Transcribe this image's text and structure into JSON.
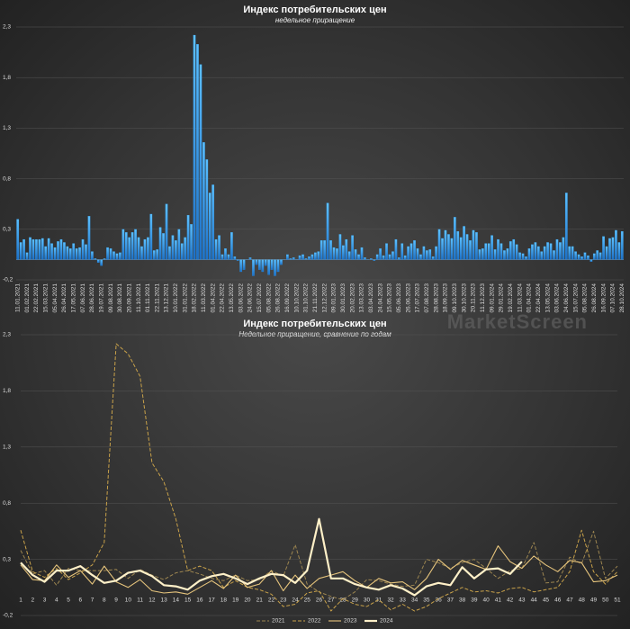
{
  "chart_data": [
    {
      "type": "bar",
      "title": "Индекс потребительских цен",
      "subtitle": "недельное приращение",
      "watermark": "MarketScreen",
      "color": "#2b9cf0",
      "categories": [
        "11.01.2021",
        null,
        null,
        "01.02.2021",
        null,
        null,
        "22.02.2021",
        null,
        null,
        "15.03.2021",
        null,
        null,
        "05.04.2021",
        null,
        null,
        "26.04.2021",
        null,
        null,
        "17.05.2021",
        null,
        null,
        "07.06.2021",
        null,
        null,
        "28.06.2021",
        null,
        null,
        "19.07.2021",
        null,
        null,
        "09.08.2021",
        null,
        null,
        "30.08.2021",
        null,
        null,
        "20.09.2021",
        null,
        null,
        "11.10.2021",
        null,
        null,
        "01.11.2021",
        null,
        null,
        "22.11.2021",
        null,
        null,
        "13.12.2021",
        null,
        null,
        "10.01.2022",
        null,
        null,
        "31.01.2022",
        null,
        null,
        "18.02.2022",
        null,
        null,
        "11.03.2022",
        null,
        null,
        "01.04.2022",
        null,
        null,
        "22.04.2022",
        null,
        null,
        "13.05.2022",
        null,
        null,
        "03.06.2022",
        null,
        null,
        "24.06.2022",
        null,
        null,
        "15.07.2022",
        null,
        null,
        "05.08.2022",
        null,
        null,
        "26.08.2022",
        null,
        null,
        "16.09.2022",
        null,
        null,
        "10.10.2022",
        null,
        null,
        "31.10.2022",
        null,
        null,
        "21.11.2022",
        null,
        null,
        "12.12.2022",
        null,
        null,
        "09.01.2023",
        null,
        null,
        "30.01.2023",
        null,
        null,
        "20.02.2023",
        null,
        null,
        "13.03.2023",
        null,
        null,
        "03.04.2023",
        null,
        null,
        "24.04.2023",
        null,
        null,
        "15.05.2023",
        null,
        null,
        "05.06.2023",
        null,
        null,
        "26.06.2023",
        null,
        null,
        "17.07.2023",
        null,
        null,
        "07.08.2023",
        null,
        null,
        "28.08.2023",
        null,
        null,
        "18.09.2023",
        null,
        null,
        "09.10.2023",
        null,
        null,
        "30.10.2023",
        null,
        null,
        "20.11.2023",
        null,
        null,
        "11.12.2023",
        null,
        null,
        "09.01.2024",
        null,
        null,
        "29.01.2024",
        null,
        null,
        "19.02.2024",
        null,
        null,
        "11.03.2024",
        null,
        null,
        "01.04.2024",
        null,
        null,
        "22.04.2024",
        null,
        null,
        "13.05.2024",
        null,
        null,
        "03.06.2024",
        null,
        null,
        "24.06.2024",
        null,
        null,
        "15.07.2024",
        null,
        null,
        "05.08.2024",
        null,
        null,
        "26.08.2024",
        null,
        null,
        "16.09.2024",
        null,
        null,
        "07.10.2024",
        null,
        null,
        "28.10.2024"
      ],
      "values": [
        0.4,
        0.17,
        0.2,
        0.07,
        0.22,
        0.2,
        0.2,
        0.2,
        0.21,
        0.13,
        0.21,
        0.16,
        0.12,
        0.18,
        0.2,
        0.17,
        0.13,
        0.11,
        0.16,
        0.11,
        0.12,
        0.2,
        0.15,
        0.43,
        0.08,
        0.01,
        -0.03,
        -0.06,
        0.01,
        0.12,
        0.11,
        0.08,
        0.06,
        0.07,
        0.3,
        0.27,
        0.22,
        0.27,
        0.3,
        0.22,
        0.13,
        0.2,
        0.22,
        0.45,
        0.09,
        0.1,
        0.32,
        0.26,
        0.55,
        0.13,
        0.24,
        0.19,
        0.3,
        0.16,
        0.22,
        0.44,
        0.35,
        2.22,
        2.13,
        1.93,
        1.16,
        0.99,
        0.66,
        0.74,
        0.2,
        0.24,
        0.05,
        0.11,
        0.05,
        0.27,
        0.03,
        -0.01,
        -0.12,
        -0.1,
        0.0,
        0.02,
        -0.16,
        -0.05,
        -0.1,
        -0.12,
        -0.06,
        -0.15,
        -0.1,
        -0.16,
        -0.12,
        -0.05,
        0.0,
        0.05,
        0.01,
        0.02,
        0.0,
        0.04,
        0.05,
        0.01,
        0.03,
        0.05,
        0.07,
        0.08,
        0.19,
        0.19,
        0.56,
        0.19,
        0.12,
        0.11,
        0.25,
        0.14,
        0.2,
        0.08,
        0.24,
        0.1,
        0.05,
        0.12,
        0.02,
        0.0,
        0.01,
        -0.01,
        0.05,
        0.11,
        0.04,
        0.16,
        0.05,
        0.08,
        0.2,
        0.02,
        0.16,
        0.04,
        0.13,
        0.16,
        0.19,
        0.11,
        0.05,
        0.13,
        0.09,
        0.1,
        0.03,
        0.13,
        0.3,
        0.21,
        0.29,
        0.25,
        0.21,
        0.42,
        0.28,
        0.22,
        0.33,
        0.25,
        0.19,
        0.29,
        0.27,
        0.1,
        0.11,
        0.16,
        0.16,
        0.24,
        0.1,
        0.2,
        0.16,
        0.09,
        0.11,
        0.18,
        0.2,
        0.15,
        0.07,
        0.06,
        0.03,
        0.11,
        0.15,
        0.17,
        0.13,
        0.08,
        0.13,
        0.17,
        0.16,
        0.09,
        0.2,
        0.17,
        0.22,
        0.66,
        0.13,
        0.13,
        0.08,
        0.05,
        0.03,
        0.07,
        0.04,
        -0.02,
        0.06,
        0.09,
        0.07,
        0.23,
        0.13,
        0.21,
        0.22,
        0.29,
        0.17,
        0.28
      ],
      "ylim": [
        -0.2,
        2.3
      ],
      "yticks": [
        {
          "value": -0.2,
          "label": "-0,2"
        },
        {
          "value": 0.3,
          "label": "0,3"
        },
        {
          "value": 0.8,
          "label": "0,8"
        },
        {
          "value": 1.3,
          "label": "1,3"
        },
        {
          "value": 1.8,
          "label": "1,8"
        },
        {
          "value": 2.3,
          "label": "2,3"
        }
      ],
      "grid": true
    },
    {
      "type": "line",
      "title": "Индекс потребительских цен",
      "subtitle": "Недельное приращение, сравнение по годам",
      "x": [
        1,
        2,
        3,
        4,
        5,
        6,
        7,
        8,
        9,
        10,
        11,
        12,
        13,
        14,
        15,
        16,
        17,
        18,
        19,
        20,
        21,
        22,
        23,
        24,
        25,
        26,
        27,
        28,
        29,
        30,
        31,
        32,
        33,
        34,
        35,
        36,
        37,
        38,
        39,
        40,
        41,
        42,
        43,
        44,
        45,
        46,
        47,
        48,
        49,
        50,
        51
      ],
      "xlim": [
        1,
        51
      ],
      "series": [
        {
          "name": "2021",
          "color": "#9c8550",
          "style": "dashed",
          "values": [
            0.38,
            0.17,
            0.2,
            0.07,
            0.22,
            0.2,
            0.2,
            0.2,
            0.21,
            0.13,
            0.21,
            0.16,
            0.12,
            0.18,
            0.2,
            0.17,
            0.13,
            0.11,
            0.16,
            0.11,
            0.12,
            0.2,
            0.15,
            0.43,
            0.08,
            0.01,
            -0.03,
            -0.06,
            0.01,
            0.12,
            0.11,
            0.08,
            0.06,
            0.07,
            0.3,
            0.27,
            0.22,
            0.27,
            0.3,
            0.22,
            0.13,
            0.2,
            0.22,
            0.45,
            0.09,
            0.1,
            0.32,
            0.26,
            0.55,
            0.13,
            0.24
          ]
        },
        {
          "name": "2022",
          "color": "#c9a24a",
          "style": "dashed",
          "values": [
            0.56,
            0.19,
            0.14,
            0.22,
            0.12,
            0.18,
            0.25,
            0.45,
            2.22,
            2.13,
            1.93,
            1.16,
            0.99,
            0.66,
            0.2,
            0.24,
            0.2,
            0.05,
            0.11,
            0.05,
            0.03,
            -0.01,
            -0.12,
            -0.1,
            0.0,
            0.02,
            -0.16,
            -0.05,
            -0.1,
            -0.12,
            -0.06,
            -0.15,
            -0.1,
            -0.16,
            -0.12,
            -0.05,
            0.0,
            0.05,
            0.01,
            0.02,
            0.0,
            0.04,
            0.05,
            0.01,
            0.03,
            0.05,
            0.19,
            0.56,
            0.19,
            0.08,
            0.19
          ]
        },
        {
          "name": "2023",
          "color": "#e6c47c",
          "style": "solid",
          "values": [
            0.25,
            0.12,
            0.11,
            0.25,
            0.14,
            0.2,
            0.08,
            0.24,
            0.1,
            0.05,
            0.12,
            0.02,
            0.0,
            0.01,
            -0.01,
            0.05,
            0.11,
            0.04,
            0.16,
            0.05,
            0.08,
            0.2,
            0.02,
            0.16,
            0.04,
            0.13,
            0.16,
            0.19,
            0.11,
            0.05,
            0.13,
            0.09,
            0.1,
            0.03,
            0.13,
            0.3,
            0.21,
            0.29,
            0.25,
            0.21,
            0.42,
            0.28,
            0.22,
            0.33,
            0.25,
            0.19,
            0.29,
            0.27,
            0.1,
            0.11,
            0.16
          ]
        },
        {
          "name": "2024",
          "color": "#fff0c8",
          "style": "thick",
          "values": [
            0.27,
            0.16,
            0.1,
            0.2,
            0.2,
            0.24,
            0.16,
            0.09,
            0.11,
            0.18,
            0.2,
            0.15,
            0.07,
            0.06,
            0.03,
            0.11,
            0.15,
            0.17,
            0.13,
            0.08,
            0.13,
            0.17,
            0.16,
            0.09,
            0.2,
            0.66,
            0.13,
            0.13,
            0.08,
            0.05,
            0.03,
            0.07,
            0.04,
            -0.02,
            0.06,
            0.09,
            0.07,
            0.23,
            0.13,
            0.21,
            0.22,
            0.17,
            0.28,
            null,
            null,
            null,
            null,
            null,
            null,
            null,
            null
          ]
        }
      ],
      "ylim": [
        -0.2,
        2.3
      ],
      "yticks": [
        {
          "value": -0.2,
          "label": "-0,2"
        },
        {
          "value": 0.3,
          "label": "0,3"
        },
        {
          "value": 0.8,
          "label": "0,8"
        },
        {
          "value": 1.3,
          "label": "1,3"
        },
        {
          "value": 1.8,
          "label": "1,8"
        },
        {
          "value": 2.3,
          "label": "2,3"
        }
      ],
      "grid": true
    }
  ]
}
